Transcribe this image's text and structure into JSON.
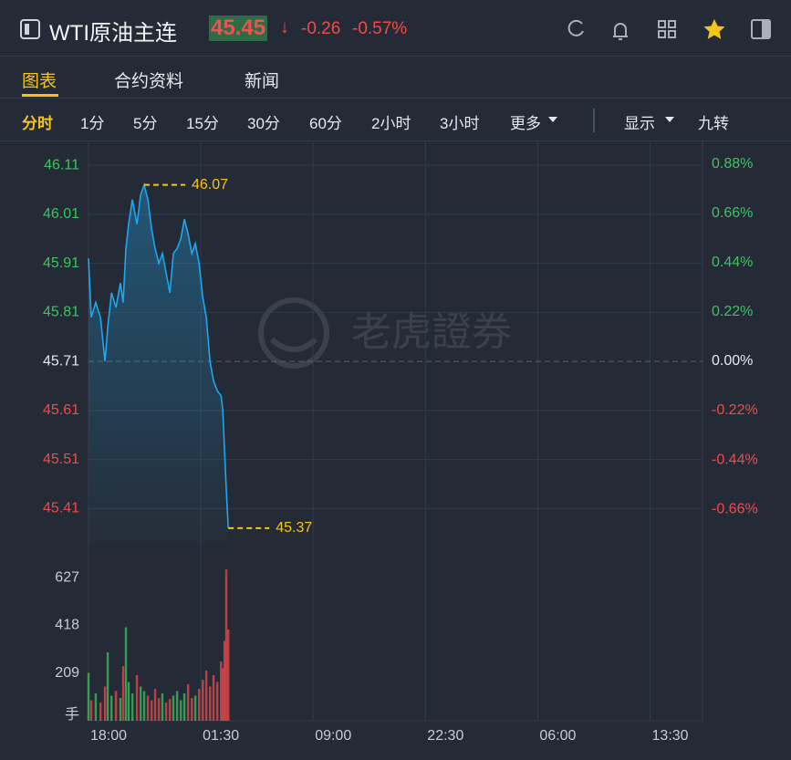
{
  "header": {
    "title": "WTI原油主连",
    "price": "45.45",
    "change": "-0.26",
    "change_pct": "-0.57%"
  },
  "tabs": [
    "图表",
    "合约资料",
    "新闻"
  ],
  "periods": [
    "分时",
    "1分",
    "5分",
    "15分",
    "30分",
    "60分",
    "2小时",
    "3小时",
    "更多",
    "显示",
    "九转"
  ],
  "watermark": "老虎證券",
  "chart_data": {
    "type": "line",
    "color": "#1ea7ee",
    "up_color": "#3cc35f",
    "down_color": "#f04a4a",
    "x": [
      0,
      11,
      29,
      48,
      66,
      77,
      92,
      110,
      128,
      139,
      150,
      161,
      176,
      194,
      209,
      223,
      238,
      253,
      267,
      282,
      296,
      311,
      326,
      340,
      355,
      370,
      384,
      399,
      414,
      428,
      443,
      458,
      472,
      487,
      501,
      516,
      531,
      538,
      545,
      552,
      560
    ],
    "values": [
      45.92,
      45.8,
      45.83,
      45.8,
      45.71,
      45.78,
      45.85,
      45.82,
      45.87,
      45.83,
      45.94,
      45.99,
      46.04,
      45.99,
      46.05,
      46.07,
      46.04,
      45.98,
      45.94,
      45.91,
      45.93,
      45.89,
      45.85,
      45.93,
      45.94,
      45.96,
      46.0,
      45.97,
      45.93,
      45.95,
      45.91,
      45.84,
      45.8,
      45.71,
      45.67,
      45.65,
      45.64,
      45.61,
      45.53,
      45.45,
      45.37
    ],
    "xlim": [
      0,
      2460
    ],
    "xticks": [
      {
        "value": 0,
        "label": "18:00"
      },
      {
        "value": 450,
        "label": "01:30"
      },
      {
        "value": 900,
        "label": "09:00"
      },
      {
        "value": 1350,
        "label": "22:30"
      },
      {
        "value": 1800,
        "label": "06:00"
      },
      {
        "value": 2250,
        "label": "13:30"
      }
    ],
    "ylim": [
      45.34,
      46.14
    ],
    "yticks": [
      46.11,
      46.01,
      45.91,
      45.81,
      45.71,
      45.61,
      45.51,
      45.41
    ],
    "y2lim": [
      -0.81,
      0.94
    ],
    "y2ticks": [
      {
        "value": 0.88,
        "label": "0.88%"
      },
      {
        "value": 0.66,
        "label": "0.66%"
      },
      {
        "value": 0.44,
        "label": "0.44%"
      },
      {
        "value": 0.22,
        "label": "0.22%"
      },
      {
        "value": 0,
        "label": "0.00%"
      },
      {
        "value": -0.22,
        "label": "-0.22%"
      },
      {
        "value": -0.44,
        "label": "-0.44%"
      },
      {
        "value": -0.66,
        "label": "-0.66%"
      }
    ],
    "max_label": 46.07,
    "min_label": 45.37,
    "grid": true,
    "volume": {
      "unit": "手",
      "ylim": [
        0,
        700
      ],
      "yticks": [
        627,
        418,
        209
      ],
      "values": [
        210,
        90,
        120,
        80,
        150,
        300,
        110,
        130,
        100,
        240,
        410,
        170,
        120,
        200,
        150,
        130,
        110,
        90,
        140,
        100,
        120,
        80,
        95,
        110,
        130,
        90,
        120,
        160,
        100,
        110,
        140,
        180,
        220,
        150,
        200,
        170,
        260,
        230,
        350,
        663,
        400
      ]
    }
  }
}
